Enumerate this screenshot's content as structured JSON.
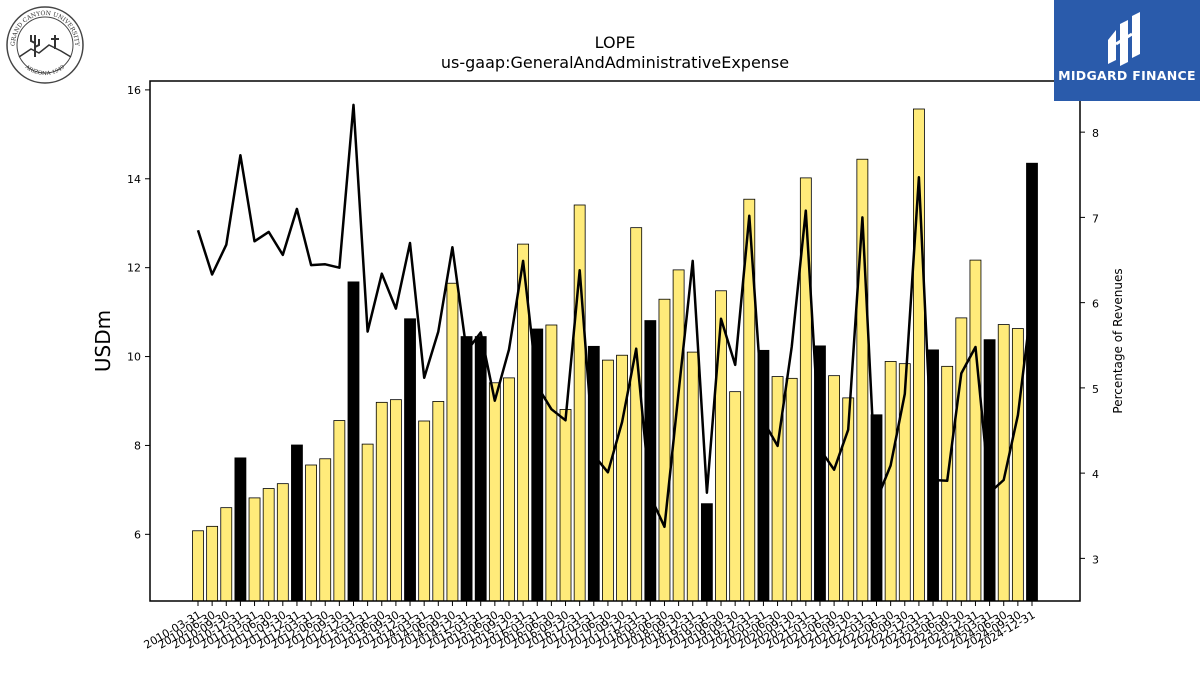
{
  "chart_data": {
    "type": "bar",
    "title": "LOPE",
    "subtitle": "us-gaap:GeneralAndAdministrativeExpense",
    "ylabel": "USDm",
    "y2label": "Percentage of Revenues",
    "ylim": [
      4.5,
      16.2
    ],
    "y2lim": [
      2.5,
      8.6
    ],
    "yticks": [
      6,
      8,
      10,
      12,
      14,
      16
    ],
    "y2ticks": [
      3,
      4,
      5,
      6,
      7,
      8
    ],
    "categories": [
      "2010-03-31",
      "2010-06-30",
      "2010-09-30",
      "2010-12-31",
      "2011-03-31",
      "2011-06-30",
      "2011-09-30",
      "2011-12-31",
      "2012-03-31",
      "2012-06-30",
      "2012-09-30",
      "2012-12-31",
      "2013-03-31",
      "2013-06-30",
      "2013-09-30",
      "2013-12-31",
      "2014-03-31",
      "2014-06-30",
      "2014-09-30",
      "2014-12-31",
      "2015-03-31",
      "2015-06-30",
      "2015-09-30",
      "2015-12-31",
      "2016-03-31",
      "2016-06-30",
      "2016-09-30",
      "2016-12-31",
      "2017-03-31",
      "2017-06-30",
      "2017-09-30",
      "2017-12-31",
      "2018-03-31",
      "2018-06-30",
      "2018-09-30",
      "2018-12-31",
      "2019-03-31",
      "2019-06-30",
      "2019-09-30",
      "2019-12-31",
      "2020-03-31",
      "2020-06-30",
      "2020-09-30",
      "2020-12-31",
      "2021-03-31",
      "2021-06-30",
      "2021-09-30",
      "2021-12-31",
      "2022-03-31",
      "2022-06-30",
      "2022-09-30",
      "2022-12-31",
      "2023-03-31",
      "2023-06-30",
      "2023-09-30",
      "2023-12-31",
      "2024-03-31",
      "2024-06-30",
      "2024-09-30",
      "2024-12-31"
    ],
    "xtick_labels": [
      "2010-03-31",
      "2010-06-30",
      "2010-09-30",
      "2010-12-31",
      "2011-03-31",
      "2011-06-30",
      "2011-09-30",
      "2011-12-31",
      "2012-03-31",
      "2012-06-30",
      "2012-09-30",
      "2012-12-31",
      "2013-03-31",
      "2013-06-30",
      "2013-09-30",
      "2013-12-31",
      "2014-03-31",
      "2014-06-30",
      "2014-09-30",
      "2014-12-31",
      "2015-03-31",
      "2015-06-30",
      "2015-09-30",
      "2015-12-31",
      "2016-03-31",
      "2016-06-30",
      "2016-09-30",
      "2016-12-31",
      "2017-03-31",
      "2017-06-30",
      "2017-09-30",
      "2017-12-31",
      "2018-03-31",
      "2018-06-30",
      "2018-09-30",
      "2018-12-31",
      "2019-03-31",
      "2019-06-30",
      "2019-09-30",
      "2019-12-31",
      "2020-03-31",
      "2020-06-30",
      "2020-09-30",
      "2020-12-31",
      "2021-03-31",
      "2021-06-30",
      "2021-09-30",
      "2021-12-31",
      "2022-03-31",
      "2022-06-30",
      "2022-09-30",
      "2022-12-31",
      "2023-03-31",
      "2023-06-30",
      "2023-09-30",
      "2023-12-31",
      "2024-03-31",
      "2024-06-30",
      "2024-09-30",
      "2024-12-31"
    ],
    "values": [
      6.08,
      6.18,
      6.6,
      7.72,
      6.82,
      7.03,
      7.14,
      8.01,
      7.56,
      7.7,
      8.56,
      11.68,
      8.03,
      8.97,
      9.03,
      10.85,
      8.55,
      8.99,
      11.65,
      10.45,
      10.45,
      9.41,
      9.52,
      12.53,
      10.62,
      10.71,
      8.81,
      13.41,
      10.23,
      9.92,
      10.03,
      12.9,
      10.81,
      11.29,
      11.95,
      10.1,
      6.69,
      11.48,
      9.21,
      13.54,
      10.14,
      9.55,
      9.51,
      14.02,
      10.24,
      9.57,
      9.07,
      14.44,
      8.69,
      9.89,
      9.84,
      15.57,
      10.15,
      9.78,
      10.87,
      12.17,
      10.38,
      10.72,
      10.63,
      14.35
    ],
    "bar_kind": [
      "q",
      "q",
      "q",
      "fy",
      "q",
      "q",
      "q",
      "fy",
      "q",
      "q",
      "q",
      "fy",
      "q",
      "q",
      "q",
      "fy",
      "q",
      "q",
      "q",
      "fy",
      "fy",
      "q",
      "q",
      "q",
      "fy",
      "q",
      "q",
      "q",
      "fy",
      "q",
      "q",
      "q",
      "fy",
      "q",
      "q",
      "q",
      "fy",
      "q",
      "q",
      "q",
      "fy",
      "q",
      "q",
      "q",
      "fy",
      "q",
      "q",
      "q",
      "fy",
      "q",
      "q",
      "q",
      "fy",
      "q",
      "q",
      "q",
      "fy",
      "q",
      "q",
      "fy"
    ],
    "pct_values": [
      6.85,
      6.33,
      6.68,
      7.73,
      6.72,
      6.83,
      6.56,
      7.1,
      6.44,
      6.45,
      6.41,
      8.32,
      5.66,
      6.34,
      5.93,
      6.7,
      5.12,
      5.66,
      6.65,
      5.43,
      5.65,
      4.85,
      5.45,
      6.49,
      5.02,
      4.75,
      4.62,
      6.38,
      4.21,
      4.01,
      4.6,
      5.46,
      3.73,
      3.37,
      4.95,
      6.49,
      3.77,
      5.81,
      5.27,
      7.02,
      4.61,
      4.32,
      5.48,
      7.08,
      4.28,
      4.04,
      4.51,
      7.0,
      3.68,
      4.09,
      4.93,
      7.47,
      3.92,
      3.91,
      5.17,
      5.48,
      3.77,
      3.92,
      4.68,
      6.03
    ],
    "colors": {
      "bar_q": "#ffeb7a",
      "bar_fy": "#000000",
      "edge": "#000000",
      "line": "#000000"
    },
    "grid": false
  },
  "logos": {
    "left": {
      "name": "Grand Canyon University seal",
      "ring_text": "GRAND CANYON UNIVERSITY",
      "year_text": "ARIZONA 1949"
    },
    "right": {
      "name": "Midgard Finance",
      "text": "MIDGARD FINANCE"
    }
  }
}
